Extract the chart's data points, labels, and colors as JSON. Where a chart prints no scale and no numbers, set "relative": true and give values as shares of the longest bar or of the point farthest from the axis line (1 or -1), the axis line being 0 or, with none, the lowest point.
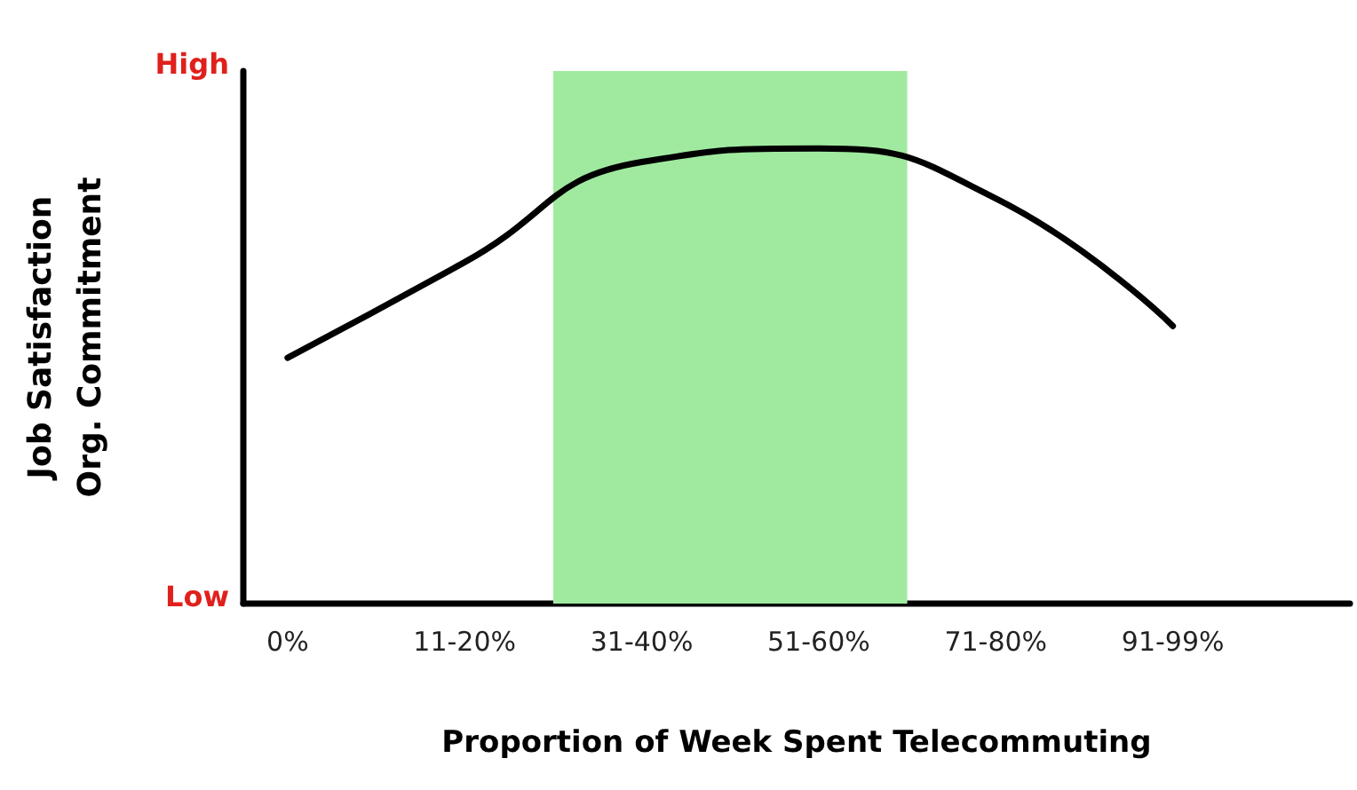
{
  "chart_data": {
    "type": "line",
    "xlabel": "Proportion of Week Spent Telecommuting",
    "ylabel": "Job Satisfaction\nOrg. Commitment",
    "annotations": [
      "High",
      "Low"
    ],
    "categories": [
      "0%",
      "11-20%",
      "31-40%",
      "51-60%",
      "71-80%",
      "91-99%"
    ],
    "relative": true,
    "series": [
      {
        "color": "#000000",
        "values": [
          0.54,
          0.75,
          0.97,
          1,
          0.89,
          0.61
        ]
      }
    ],
    "bands": [
      {
        "axis": "x",
        "from": "31-40%",
        "to": "51-60%",
        "color": "#a0eaa0"
      }
    ],
    "grid": false,
    "marker": "none",
    "line_style": "solid"
  }
}
